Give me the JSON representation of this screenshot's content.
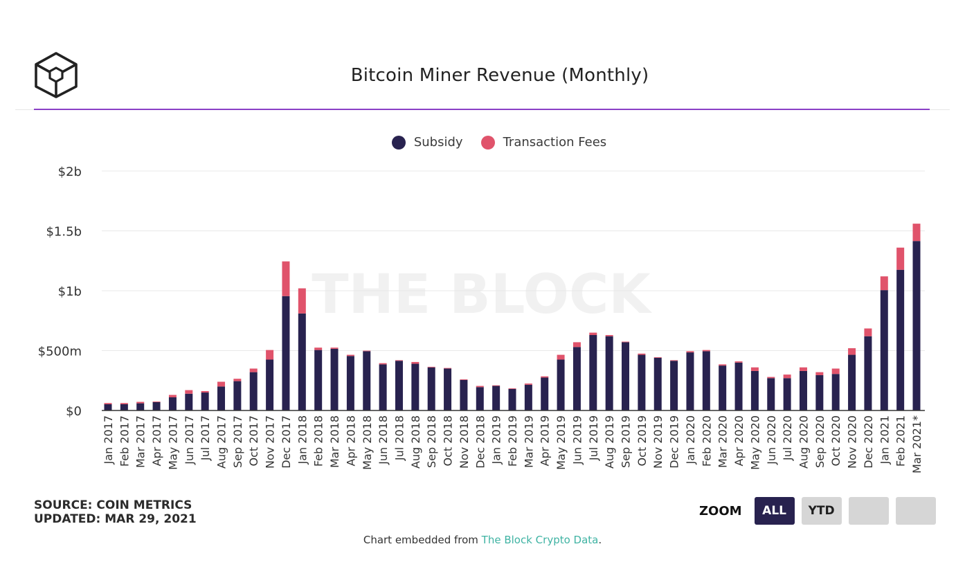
{
  "header": {
    "logo_icon": "the-block-cube-logo-icon",
    "title": "Bitcoin Miner Revenue (Monthly)"
  },
  "colors": {
    "subsidy": "#28224f",
    "fees": "#e0536b",
    "accent": "#8a3fc6",
    "link": "#3fb3a3"
  },
  "legend": {
    "subsidy_label": "Subsidy",
    "fees_label": "Transaction Fees"
  },
  "watermark": "THE BLOCK",
  "source": {
    "line1": "SOURCE: COIN METRICS",
    "line2": "UPDATED: MAR 29, 2021"
  },
  "zoom": {
    "label": "ZOOM",
    "buttons": [
      "ALL",
      "YTD",
      "",
      ""
    ]
  },
  "footer": {
    "prefix": "Chart embedded from ",
    "link_text": "The Block Crypto Data",
    "suffix": "."
  },
  "chart_data": {
    "type": "bar",
    "stacked": true,
    "title": "Bitcoin Miner Revenue (Monthly)",
    "xlabel": "",
    "ylabel": "",
    "ylim": [
      0,
      2000
    ],
    "y_unit": "millions USD",
    "y_ticks": [
      0,
      500,
      1000,
      1500,
      2000
    ],
    "y_tick_labels": [
      "$0",
      "$500m",
      "$1b",
      "$1.5b",
      "$2b"
    ],
    "grid": true,
    "legend_position": "top-center",
    "categories": [
      "Jan 2017",
      "Feb 2017",
      "Mar 2017",
      "Apr 2017",
      "May 2017",
      "Jun 2017",
      "Jul 2017",
      "Aug 2017",
      "Sep 2017",
      "Oct 2017",
      "Nov 2017",
      "Dec 2017",
      "Jan 2018",
      "Feb 2018",
      "Mar 2018",
      "Apr 2018",
      "May 2018",
      "Jun 2018",
      "Jul 2018",
      "Aug 2018",
      "Sep 2018",
      "Oct 2018",
      "Nov 2018",
      "Dec 2018",
      "Jan 2019",
      "Feb 2019",
      "Mar 2019",
      "Apr 2019",
      "May 2019",
      "Jun 2019",
      "Jul 2019",
      "Aug 2019",
      "Sep 2019",
      "Oct 2019",
      "Nov 2019",
      "Dec 2019",
      "Jan 2020",
      "Feb 2020",
      "Mar 2020",
      "Apr 2020",
      "May 2020",
      "Jun 2020",
      "Jul 2020",
      "Aug 2020",
      "Sep 2020",
      "Oct 2020",
      "Nov 2020",
      "Dec 2020",
      "Jan 2021",
      "Feb 2021",
      "Mar 2021*"
    ],
    "series": [
      {
        "name": "Subsidy",
        "values": [
          52,
          52,
          60,
          70,
          110,
          140,
          150,
          200,
          245,
          320,
          425,
          955,
          810,
          505,
          515,
          455,
          495,
          385,
          415,
          390,
          360,
          350,
          255,
          195,
          205,
          180,
          215,
          275,
          425,
          530,
          630,
          620,
          570,
          465,
          440,
          415,
          485,
          495,
          375,
          400,
          330,
          270,
          270,
          330,
          295,
          305,
          465,
          620,
          1005,
          1175,
          1415
        ]
      },
      {
        "name": "Transaction Fees",
        "values": [
          10,
          10,
          12,
          5,
          20,
          30,
          12,
          40,
          20,
          30,
          80,
          290,
          210,
          20,
          10,
          10,
          5,
          10,
          5,
          15,
          5,
          5,
          5,
          10,
          5,
          5,
          10,
          10,
          40,
          40,
          20,
          10,
          5,
          10,
          5,
          5,
          10,
          10,
          10,
          10,
          30,
          10,
          30,
          30,
          25,
          45,
          55,
          65,
          115,
          185,
          145
        ]
      }
    ]
  }
}
